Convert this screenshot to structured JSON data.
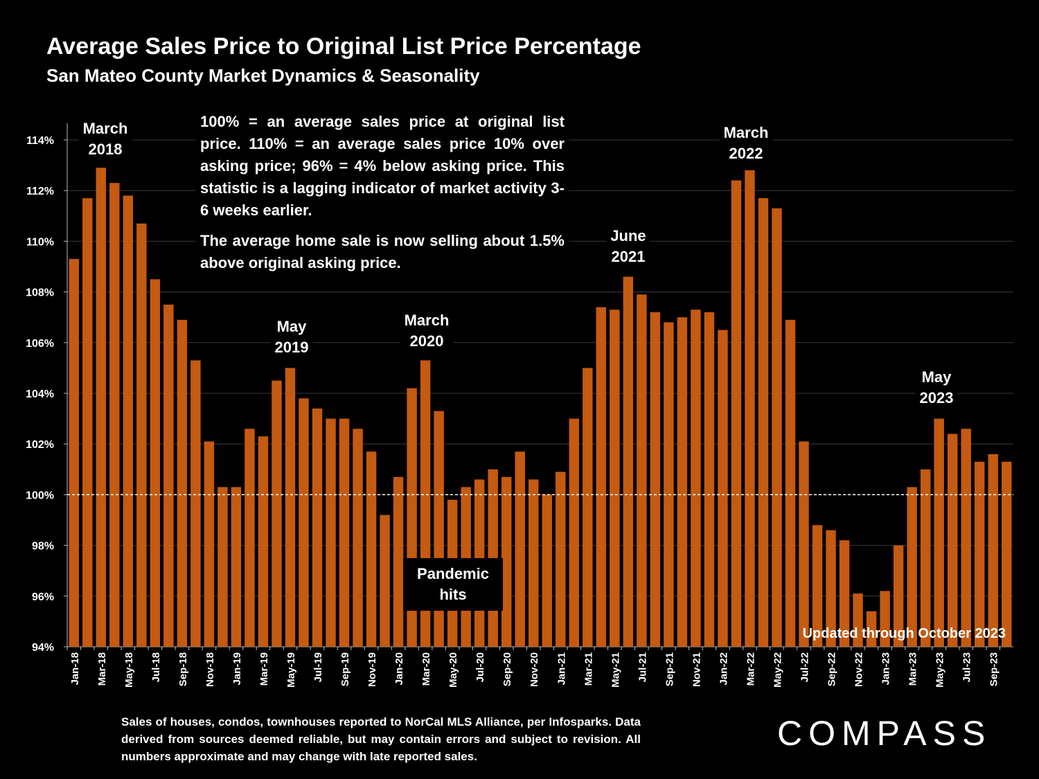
{
  "chart_data": {
    "type": "bar",
    "title": "Average Sales Price to Original List Price Percentage",
    "subtitle": "San Mateo County Market Dynamics & Seasonality",
    "categories": [
      "Jan-18",
      null,
      "Mar-18",
      null,
      "May-18",
      null,
      "Jul-18",
      null,
      "Sep-18",
      null,
      "Nov-18",
      null,
      "Jan-19",
      null,
      "Mar-19",
      null,
      "May-19",
      null,
      "Jul-19",
      null,
      "Sep-19",
      null,
      "Nov-19",
      null,
      "Jan-20",
      null,
      "Mar-20",
      null,
      "May-20",
      null,
      "Jul-20",
      null,
      "Sep-20",
      null,
      "Nov-20",
      null,
      "Jan-21",
      null,
      "Mar-21",
      null,
      "May-21",
      null,
      "Jul-21",
      null,
      "Sep-21",
      null,
      "Nov-21",
      null,
      "Jan-22",
      null,
      "Mar-22",
      null,
      "May-22",
      null,
      "Jul-22",
      null,
      "Sep-22",
      null,
      "Nov-22",
      null,
      "Jan-23",
      null,
      "Mar-23",
      null,
      "May-23",
      null,
      "Jul-23",
      null,
      "Sep-23",
      null
    ],
    "values": [
      109.3,
      111.7,
      112.9,
      112.3,
      111.8,
      110.7,
      108.5,
      107.5,
      106.9,
      105.3,
      102.1,
      100.3,
      100.3,
      102.6,
      102.3,
      104.5,
      105.0,
      103.8,
      103.4,
      103.0,
      103.0,
      102.6,
      101.7,
      99.2,
      100.7,
      104.2,
      105.3,
      103.3,
      99.8,
      100.3,
      100.6,
      101.0,
      100.7,
      101.7,
      100.6,
      100.0,
      100.9,
      103.0,
      105.0,
      107.4,
      107.3,
      108.6,
      107.9,
      107.2,
      106.8,
      107.0,
      107.3,
      107.2,
      106.5,
      112.4,
      112.8,
      111.7,
      111.3,
      106.9,
      102.1,
      98.8,
      98.6,
      98.2,
      96.1,
      95.4,
      96.2,
      98.0,
      100.3,
      101.0,
      103.0,
      102.4,
      102.6,
      101.3,
      101.6,
      101.3
    ],
    "color": "#c55a11",
    "ylim": [
      94,
      114
    ],
    "yticks": [
      {
        "value": 94,
        "label": "94%"
      },
      {
        "value": 96,
        "label": "96%"
      },
      {
        "value": 98,
        "label": "98%"
      },
      {
        "value": 100,
        "label": "100%"
      },
      {
        "value": 102,
        "label": "102%"
      },
      {
        "value": 104,
        "label": "104%"
      },
      {
        "value": 106,
        "label": "106%"
      },
      {
        "value": 108,
        "label": "108%"
      },
      {
        "value": 110,
        "label": "110%"
      },
      {
        "value": 112,
        "label": "112%"
      },
      {
        "value": 114,
        "label": "114%"
      }
    ],
    "grid": true,
    "reference_line": 100,
    "annotations": [
      "March 2018",
      "May 2019",
      "March 2020",
      "June 2021",
      "March 2022",
      "May 2023"
    ],
    "callout": "Pandemic hits",
    "notes": [
      "100% = an average sales price at original list price. 110% = an average sales price 10% over asking price; 96% = 4% below asking price. This statistic is a lagging indicator of market activity 3-6 weeks earlier.",
      "The average home sale is now selling about 1.5% above original asking price."
    ],
    "updated": "Updated through October 2023",
    "footnote": "Sales of houses, condos, townhouses reported to NorCal MLS Alliance, per Infosparks. Data derived from sources deemed reliable, but may contain errors and subject to revision. All numbers approximate and may change with late reported sales.",
    "logo": "COMPASS"
  }
}
